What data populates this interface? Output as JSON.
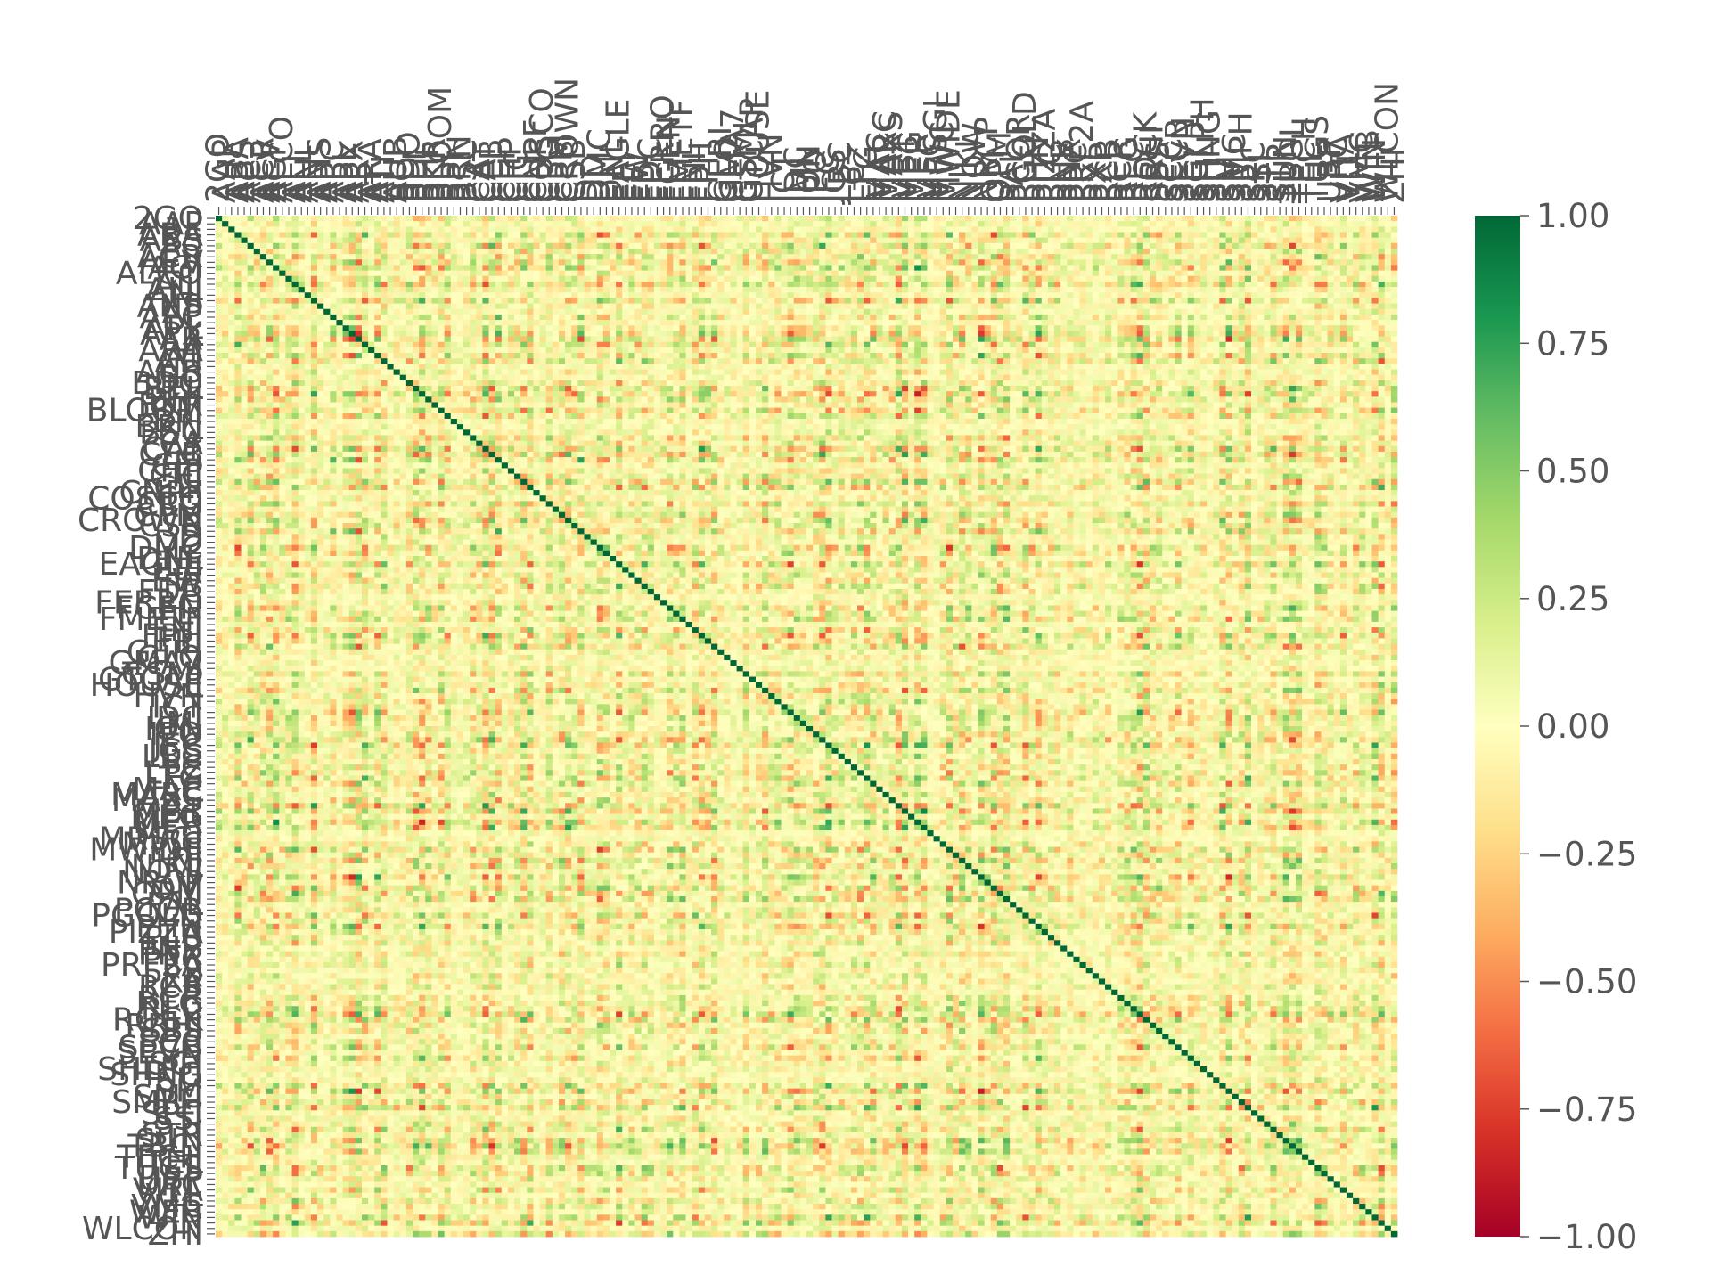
{
  "chart_data": {
    "type": "heatmap",
    "title": "",
    "xlabel": "",
    "ylabel": "",
    "matrix_size": 186,
    "row_labels_visible": [
      "2GO",
      "AAP",
      "ABA",
      "ABS",
      "AC",
      "ACR",
      "AEV",
      "AGI",
      "ALCO",
      "ALI",
      "ALL",
      "ANI",
      "ANS",
      "AP",
      "APC",
      "APL",
      "APX",
      "AR",
      "ARA",
      "AT",
      "ATI",
      "AUB",
      "BC",
      "BDO",
      "BEL",
      "BHI",
      "BKR",
      "BLOOM",
      "BPI",
      "BRN",
      "BSC",
      "CA",
      "CAT",
      "CEB",
      "CEI",
      "CHP",
      "CIC",
      "CLI",
      "CNPF",
      "COSCO",
      "CPG",
      "CPM",
      "CROWN",
      "CSB",
      "D",
      "DD",
      "DMC",
      "DNL",
      "EAGLE",
      "EEI",
      "EW",
      "FB",
      "FDC",
      "FERRO",
      "FGEN",
      "FLI",
      "FMETF",
      "FNI",
      "FPH",
      "FPI",
      "GERI",
      "GLO",
      "GMA7",
      "GSMI",
      "GTCAP",
      "HOUSE",
      "HVN",
      "I",
      "ICT",
      "IDC",
      "IMI",
      "ION",
      "IPO",
      "JFC",
      "JGS",
      "LBC",
      "LC",
      "LPZ",
      "LTG",
      "MAC",
      "MARC",
      "MAXS",
      "MBT",
      "MEG",
      "MER",
      "MFC",
      "MRSGI",
      "MWC",
      "MWIDE",
      "NI",
      "NIKL",
      "NOW",
      "NRCP",
      "OM",
      "OPM",
      "PAL",
      "PCOR",
      "PGOLD",
      "PHN",
      "PIZZA",
      "PLC",
      "PNB",
      "PNX",
      "PPC",
      "PRF2A",
      "PX",
      "PXP",
      "RCB",
      "RCR",
      "REG",
      "RLC",
      "ROCK",
      "RRHI",
      "SBS",
      "SCC",
      "SECB",
      "SEVN",
      "SGI",
      "SHLPH",
      "SHNG",
      "SLI",
      "SM",
      "SMC",
      "SMPH",
      "SPC",
      "SSI",
      "STI",
      "STR",
      "SUN",
      "TBGI",
      "TECH",
      "TEL",
      "TUGS",
      "UBP",
      "URC",
      "VITA",
      "VLL",
      "VMC",
      "WEB",
      "WIN",
      "WLCON",
      "ZHI"
    ],
    "col_labels_visible": [
      "2GO",
      "AAP",
      "ABA",
      "ABS",
      "AC",
      "ACR",
      "AEV",
      "AGI",
      "ALCO",
      "ALI",
      "ALL",
      "ANI",
      "ANS",
      "AP",
      "APC",
      "APL",
      "APX",
      "AR",
      "ARA",
      "AT",
      "ATI",
      "AUB",
      "BC",
      "BDO",
      "BEL",
      "BHI",
      "BKR",
      "BLOOM",
      "BPI",
      "BRN",
      "BSC",
      "CA",
      "CAT",
      "CEB",
      "CEI",
      "CHP",
      "CIC",
      "CLI",
      "CNPF",
      "COSCO",
      "CPG",
      "CPM",
      "CROWN",
      "CSB",
      "D",
      "DD",
      "DMC",
      "DNL",
      "EAGLE",
      "EEI",
      "EW",
      "FB",
      "FDC",
      "FERRO",
      "FGEN",
      "FLI",
      "FMETF",
      "FNI",
      "FPH",
      "FPI",
      "GERI",
      "GLO",
      "GMA7",
      "GSMI",
      "GTCAP",
      "HOUSE",
      "HVN",
      "I",
      "ICT",
      "IDC",
      "IMI",
      "ION",
      "IPO",
      "JFC",
      "JGS",
      "LBC",
      "LC",
      "LPZ",
      "LTG",
      "MAC",
      "MARC",
      "MAXS",
      "MBT",
      "MEG",
      "MER",
      "MFC",
      "MRSGI",
      "MWC",
      "MWIDE",
      "NI",
      "NIKL",
      "NOW",
      "NRCP",
      "OM",
      "OPM",
      "PAL",
      "PCOR",
      "PGOLD",
      "PHN",
      "PIZZA",
      "PLC",
      "PNB",
      "PNX",
      "PPC",
      "PRF2A",
      "PX",
      "PXP",
      "RCB",
      "RCR",
      "REG",
      "RLC",
      "ROCK",
      "RRHI",
      "SBS",
      "SCC",
      "SECB",
      "SEVN",
      "SGI",
      "SHLPH",
      "SHNG",
      "SLI",
      "SM",
      "SMC",
      "SMPH",
      "SPC",
      "SSI",
      "STI",
      "STR",
      "SUN",
      "TBGI",
      "TECH",
      "TEL",
      "TUGS",
      "UBP",
      "URC",
      "VITA",
      "VLL",
      "VMC",
      "WEB",
      "WIN",
      "WLCON",
      "ZHI"
    ],
    "diagonal_value": 1.0,
    "value_range": [
      -1.0,
      1.0
    ],
    "colormap": "RdYlGn",
    "colormap_stops": [
      "#a50026",
      "#d73027",
      "#f46d43",
      "#fdae61",
      "#fee08b",
      "#ffffbf",
      "#d9ef8b",
      "#a6d96a",
      "#66bd63",
      "#1a9850",
      "#006837"
    ],
    "colorbar": {
      "ticks": [
        1.0,
        0.75,
        0.5,
        0.25,
        0.0,
        -0.25,
        -0.5,
        -0.75,
        -1.0
      ],
      "tick_labels": [
        "1.00",
        "0.75",
        "0.50",
        "0.25",
        "0.00",
        "−0.25",
        "−0.50",
        "−0.75",
        "−1.00"
      ]
    },
    "grid": false,
    "legend": "colorbar-right"
  }
}
